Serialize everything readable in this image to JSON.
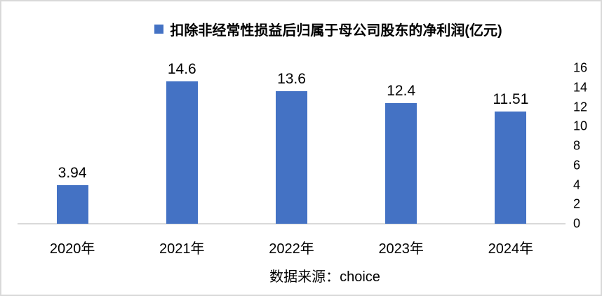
{
  "colors": {
    "bar": "#4472C4",
    "axis_line": "#D9D9D9",
    "text": "#000000",
    "frame_border": "#D9D9D9"
  },
  "chart_data": {
    "type": "bar",
    "legend": "扣除非经常性损益后归属于母公司股东的净利润(亿元)",
    "categories": [
      "2020年",
      "2021年",
      "2022年",
      "2023年",
      "2024年"
    ],
    "values": [
      3.94,
      14.6,
      13.6,
      12.4,
      11.51
    ],
    "value_labels": [
      "3.94",
      "14.6",
      "13.6",
      "12.4",
      "11.51"
    ],
    "yticks": [
      0,
      2,
      4,
      6,
      8,
      10,
      12,
      14,
      16
    ],
    "ylim": [
      0,
      16
    ],
    "yaxis_side": "right",
    "grid": false,
    "legend_position": "top"
  },
  "source": "数据来源：choice"
}
